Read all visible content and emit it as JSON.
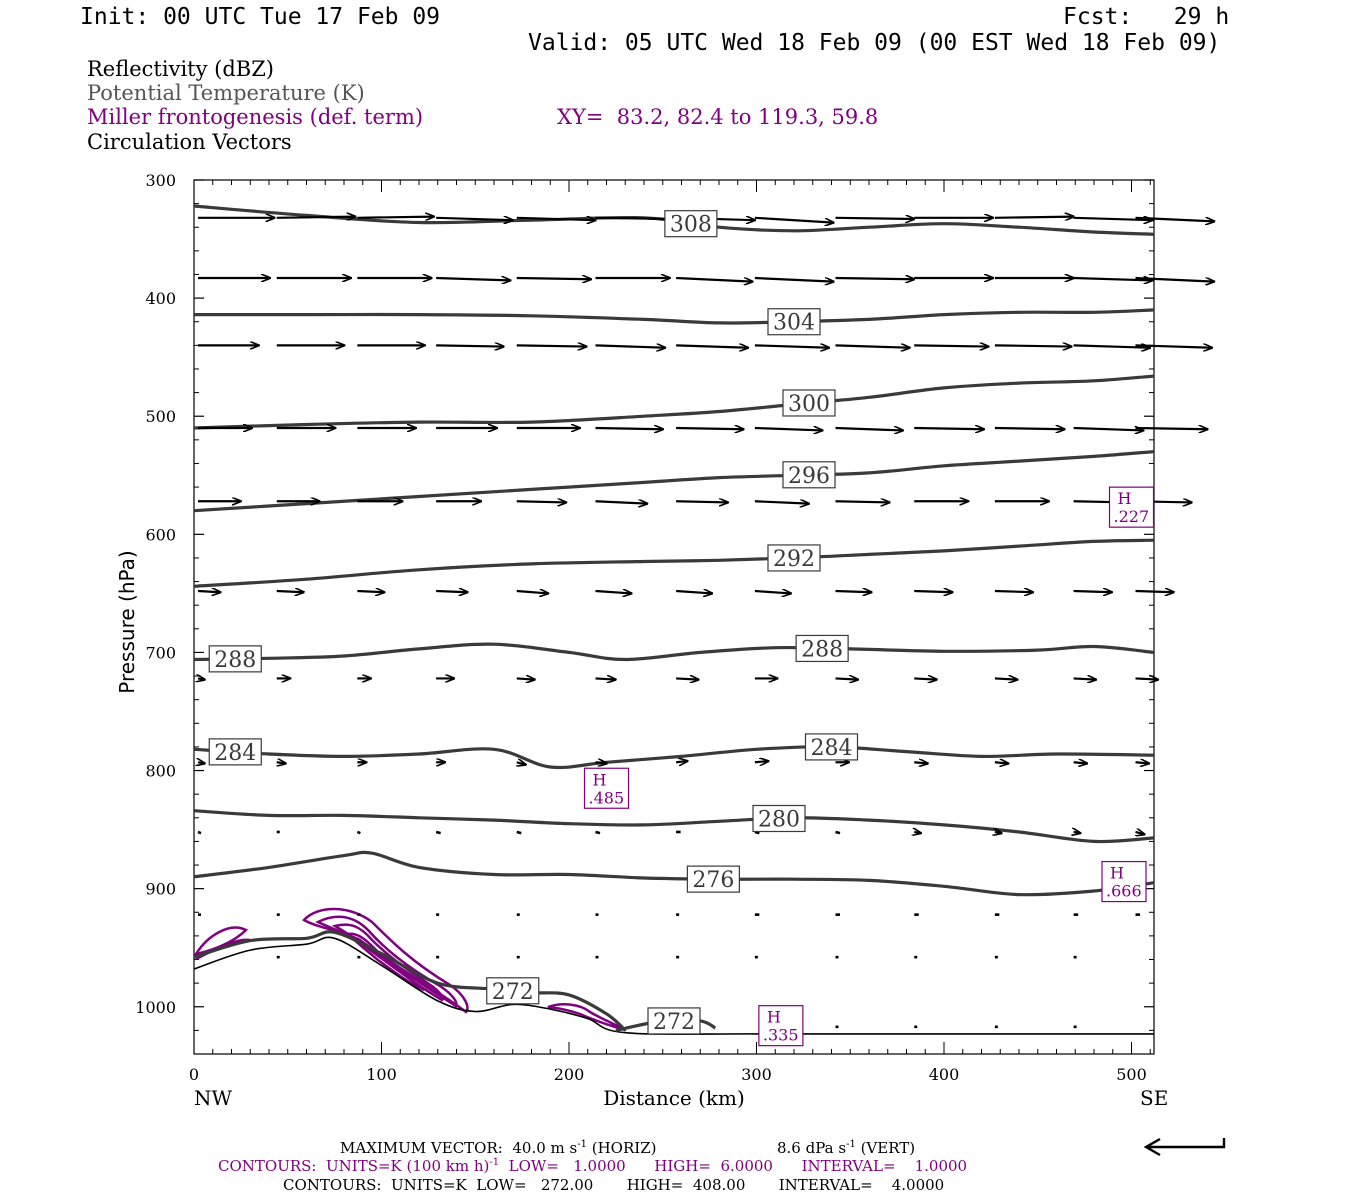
{
  "header": {
    "init": "Init: 00 UTC Tue 17 Feb 09",
    "fcst": "Fcst:   29 h",
    "valid": "Valid: 05 UTC Wed 18 Feb 09 (00 EST Wed 18 Feb 09)"
  },
  "legend": {
    "reflectivity": "Reflectivity (dBZ)",
    "theta": "Potential Temperature (K)",
    "frontogenesis": "Miller frontogenesis (def. term)",
    "xy": "XY=  83.2, 82.4 to 119.3, 59.8",
    "vectors": "Circulation Vectors"
  },
  "colors": {
    "theta": "#3a3a3a",
    "frontogenesis": "#800080",
    "vectors": "#000000"
  },
  "chart_data": {
    "type": "line",
    "title": "",
    "xlabel": "Distance (km)",
    "ylabel": "Pressure (hPa)",
    "xlim": [
      0,
      512
    ],
    "ylim": [
      1040,
      300
    ],
    "x_ticks": [
      0,
      100,
      200,
      300,
      400,
      500
    ],
    "y_ticks": [
      300,
      400,
      500,
      600,
      700,
      800,
      900,
      1000
    ],
    "x_endpoints": {
      "left": "NW",
      "right": "SE"
    },
    "isentropes": [
      {
        "value": 308,
        "label": "308",
        "x": [
          0,
          60,
          120,
          180,
          240,
          280,
          320,
          360,
          400,
          440,
          480,
          512
        ],
        "p": [
          322,
          330,
          336,
          334,
          332,
          340,
          343,
          340,
          337,
          340,
          344,
          346
        ]
      },
      {
        "value": 304,
        "label": "304",
        "x": [
          0,
          60,
          120,
          180,
          240,
          280,
          320,
          360,
          400,
          440,
          480,
          512
        ],
        "p": [
          414,
          414,
          414,
          415,
          418,
          421,
          420,
          418,
          414,
          412,
          412,
          410
        ]
      },
      {
        "value": 300,
        "label": "300",
        "x": [
          0,
          60,
          120,
          180,
          240,
          280,
          320,
          360,
          400,
          440,
          480,
          512
        ],
        "p": [
          510,
          507,
          505,
          505,
          500,
          496,
          490,
          484,
          476,
          472,
          470,
          466
        ]
      },
      {
        "value": 296,
        "label": "296",
        "x": [
          0,
          60,
          120,
          180,
          240,
          280,
          320,
          360,
          400,
          440,
          480,
          512
        ],
        "p": [
          580,
          574,
          568,
          562,
          556,
          552,
          550,
          548,
          542,
          538,
          534,
          530
        ]
      },
      {
        "value": 292,
        "label": "292",
        "x": [
          0,
          60,
          120,
          180,
          240,
          280,
          320,
          360,
          400,
          440,
          480,
          512
        ],
        "p": [
          644,
          638,
          630,
          625,
          623,
          622,
          620,
          617,
          614,
          610,
          606,
          605
        ]
      },
      {
        "value": 288,
        "label": "288",
        "x": [
          0,
          40,
          80,
          120,
          160,
          200,
          230,
          270,
          310,
          350,
          400,
          450,
          480,
          512
        ],
        "p": [
          706,
          705,
          703,
          697,
          693,
          700,
          706,
          700,
          696,
          697,
          699,
          698,
          695,
          700
        ]
      },
      {
        "value": 284,
        "label": "284",
        "x": [
          0,
          40,
          80,
          120,
          160,
          190,
          220,
          260,
          300,
          340,
          380,
          420,
          460,
          512
        ],
        "p": [
          782,
          786,
          788,
          786,
          782,
          797,
          793,
          788,
          782,
          780,
          784,
          788,
          786,
          787
        ]
      },
      {
        "value": 280,
        "label": "280",
        "x": [
          0,
          40,
          80,
          120,
          160,
          200,
          240,
          280,
          320,
          360,
          400,
          440,
          480,
          512
        ],
        "p": [
          834,
          838,
          838,
          840,
          842,
          845,
          846,
          843,
          840,
          842,
          846,
          852,
          860,
          857
        ]
      },
      {
        "value": 276,
        "label": "276",
        "x": [
          0,
          40,
          80,
          95,
          120,
          160,
          200,
          240,
          280,
          320,
          360,
          400,
          440,
          480,
          512
        ],
        "p": [
          890,
          882,
          872,
          870,
          882,
          888,
          888,
          891,
          892,
          892,
          893,
          898,
          905,
          902,
          895
        ]
      },
      {
        "value": 272,
        "label": "272",
        "x": [
          0,
          30,
          60,
          75,
          100,
          130,
          160,
          180,
          200,
          220,
          230
        ],
        "p": [
          958,
          944,
          942,
          937,
          955,
          980,
          985,
          988,
          990,
          1006,
          1020
        ]
      },
      {
        "value": 272,
        "label": "272",
        "x": [
          225,
          250,
          270,
          278
        ],
        "p": [
          1020,
          1012,
          1012,
          1018
        ]
      }
    ],
    "terrain": {
      "x": [
        0,
        30,
        60,
        75,
        100,
        130,
        150,
        170,
        190,
        210,
        230,
        300,
        400,
        512
      ],
      "p": [
        968,
        952,
        947,
        942,
        965,
        995,
        1004,
        998,
        1002,
        1010,
        1022,
        1023,
        1023,
        1023
      ]
    },
    "frontogenesis_maxima": [
      {
        "label": "H",
        "value": ".485",
        "x": 220,
        "p": 815
      },
      {
        "label": "H",
        "value": ".227",
        "x": 500,
        "p": 577
      },
      {
        "label": "H",
        "value": ".666",
        "x": 496,
        "p": 894
      },
      {
        "label": "H",
        "value": ".335",
        "x": 313,
        "p": 1016
      }
    ],
    "vector_rows": [
      {
        "p": 332,
        "x": [
          0,
          42,
          85,
          127,
          170,
          212,
          255,
          297,
          340,
          382,
          425,
          467,
          500
        ],
        "u": [
          34,
          35,
          34,
          34,
          35,
          35,
          35,
          35,
          35,
          35,
          35,
          35,
          35
        ],
        "w": [
          0,
          -1,
          -1,
          2,
          2,
          1,
          2,
          4,
          1,
          0,
          -1,
          2,
          3
        ]
      },
      {
        "p": 383,
        "x": [
          0,
          42,
          85,
          127,
          170,
          212,
          255,
          297,
          340,
          382,
          425,
          467,
          500
        ],
        "u": [
          32,
          33,
          33,
          33,
          33,
          33,
          34,
          35,
          35,
          35,
          35,
          35,
          35
        ],
        "w": [
          0,
          0,
          0,
          2,
          1,
          0,
          3,
          3,
          1,
          0,
          0,
          2,
          3
        ]
      },
      {
        "p": 440,
        "x": [
          0,
          42,
          85,
          127,
          170,
          212,
          255,
          297,
          340,
          382,
          425,
          467,
          500
        ],
        "u": [
          27,
          30,
          30,
          30,
          31,
          31,
          32,
          33,
          33,
          33,
          34,
          34,
          34
        ],
        "w": [
          0,
          0,
          0,
          1,
          1,
          2,
          2,
          2,
          2,
          1,
          1,
          2,
          2
        ]
      },
      {
        "p": 510,
        "x": [
          0,
          42,
          85,
          127,
          170,
          212,
          255,
          297,
          340,
          382,
          425,
          467,
          500
        ],
        "u": [
          24,
          26,
          26,
          27,
          28,
          30,
          30,
          30,
          30,
          31,
          31,
          31,
          32
        ],
        "w": [
          0,
          0,
          0,
          0,
          0,
          1,
          1,
          2,
          2,
          1,
          1,
          2,
          1
        ]
      },
      {
        "p": 572,
        "x": [
          0,
          42,
          85,
          127,
          170,
          212,
          255,
          297,
          340,
          382,
          425,
          467,
          500
        ],
        "u": [
          19,
          19,
          20,
          20,
          22,
          23,
          23,
          24,
          24,
          24,
          24,
          24,
          25
        ],
        "w": [
          0,
          0,
          0,
          0,
          1,
          2,
          1,
          2,
          1,
          0,
          0,
          1,
          1
        ]
      },
      {
        "p": 648,
        "x": [
          0,
          42,
          85,
          127,
          170,
          212,
          255,
          297,
          340,
          382,
          425,
          467,
          500
        ],
        "u": [
          10,
          12,
          12,
          14,
          14,
          16,
          16,
          16,
          16,
          17,
          17,
          17,
          17
        ],
        "w": [
          1,
          1,
          1,
          1,
          2,
          2,
          2,
          2,
          1,
          1,
          1,
          1,
          1
        ]
      },
      {
        "p": 722,
        "x": [
          0,
          42,
          85,
          127,
          170,
          212,
          255,
          297,
          340,
          382,
          425,
          467,
          500
        ],
        "u": [
          3,
          6,
          6,
          8,
          8,
          9,
          10,
          10,
          10,
          10,
          10,
          10,
          10
        ],
        "w": [
          1,
          0,
          0,
          0,
          1,
          1,
          1,
          0,
          1,
          1,
          1,
          1,
          1
        ]
      },
      {
        "p": 793,
        "x": [
          0,
          42,
          85,
          127,
          170,
          212,
          255,
          297,
          340,
          382,
          425,
          467,
          500
        ],
        "u": [
          3,
          4,
          4,
          4,
          4,
          5,
          5,
          6,
          6,
          6,
          6,
          6,
          6
        ],
        "w": [
          1,
          1,
          0,
          0,
          2,
          1,
          -1,
          -1,
          0,
          1,
          1,
          1,
          1
        ]
      },
      {
        "p": 852,
        "x": [
          0,
          42,
          85,
          127,
          170,
          212,
          255,
          297,
          340,
          382,
          425,
          467,
          500
        ],
        "u": [
          1,
          1,
          1,
          2,
          2,
          2,
          2,
          2,
          2,
          3,
          3,
          3,
          4
        ],
        "w": [
          1,
          0,
          1,
          1,
          1,
          1,
          0,
          1,
          1,
          1,
          1,
          1,
          2
        ]
      },
      {
        "p": 922,
        "x": [
          0,
          42,
          85,
          127,
          170,
          212,
          255,
          297,
          340,
          382,
          425,
          467,
          500
        ],
        "u": [
          1,
          1,
          1,
          1,
          1,
          1,
          1,
          2,
          2,
          2,
          2,
          2,
          2
        ],
        "w": [
          0,
          0,
          0,
          0,
          0,
          0,
          0,
          0,
          0,
          0,
          0,
          0,
          0
        ]
      },
      {
        "p": 958,
        "x": [
          42,
          85,
          127,
          170,
          212,
          255,
          297,
          340,
          382,
          425,
          467
        ],
        "u": [
          1,
          1,
          1,
          1,
          1,
          1,
          1,
          1,
          1,
          1,
          1
        ],
        "w": [
          0,
          0,
          0,
          0,
          0,
          0,
          0,
          0,
          0,
          0,
          0
        ]
      },
      {
        "p": 1017,
        "x": [
          340,
          382,
          425,
          467
        ],
        "u": [
          1,
          1,
          1,
          1
        ],
        "w": [
          0,
          0,
          0,
          0
        ]
      }
    ]
  },
  "axes": {
    "x_endpoint_left": "NW",
    "x_endpoint_right": "SE"
  },
  "footer": {
    "max_vector": "MAXIMUM VECTOR:  40.0 m s",
    "max_vector_exp": "-1",
    "max_vector_h": " (HORIZ)",
    "max_vert": "8.6 dPa s",
    "max_vert_exp": "-1",
    "max_vert_v": " (VERT)",
    "contours_fg_a": "CONTOURS:  UNITS=K (100 km h)",
    "contours_fg_exp": "-1",
    "contours_fg_b": "  LOW=   1.0000      HIGH=  6.0000      INTERVAL=    1.0000",
    "contours_theta": "CONTOURS:  UNITS=K  LOW=   272.00       HIGH=  408.00       INTERVAL=    4.0000"
  }
}
